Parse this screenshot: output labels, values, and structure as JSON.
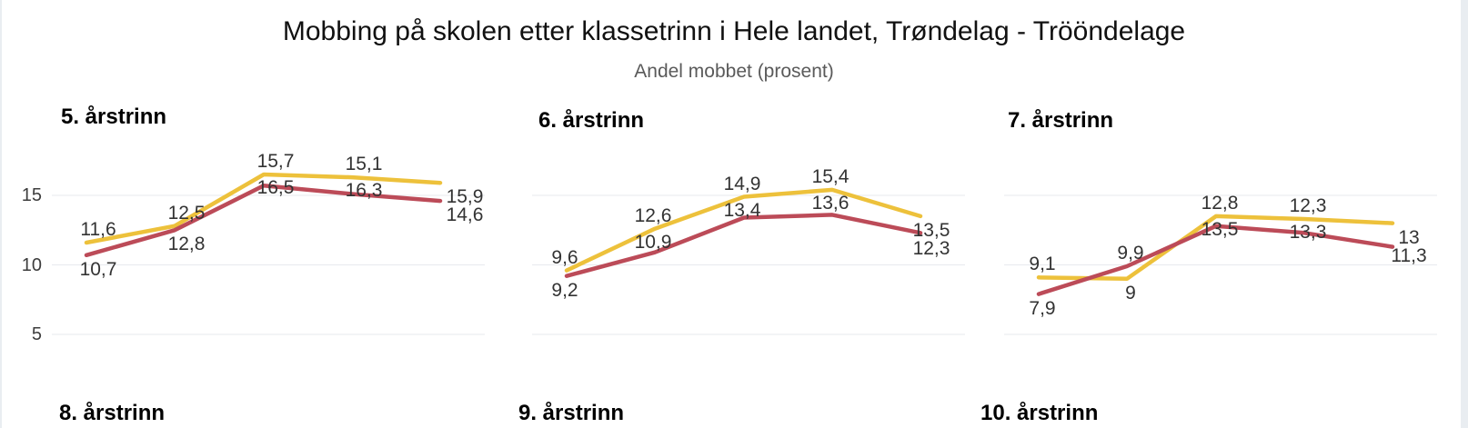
{
  "page": {
    "title": "Mobbing på skolen etter klassetrinn i Hele landet, Trøndelag - Trööndelage",
    "subtitle": "Andel mobbet (prosent)"
  },
  "colors": {
    "line_yellow": "#EDC13B",
    "line_red": "#BC4B58",
    "gridline": "#E7EAEE",
    "title_text": "#111111",
    "subtitle_text": "#5A5A5A",
    "panel_title_text": "#000000",
    "data_label_text": "#333333",
    "axis_tick_text": "#3D3D3D",
    "page_edge": "#E9EDF1"
  },
  "y_axis": {
    "ticks": [
      {
        "label": "15",
        "value": 15
      },
      {
        "label": "10",
        "value": 10
      },
      {
        "label": "5",
        "value": 5
      }
    ]
  },
  "chart_data": [
    {
      "type": "line",
      "title": "5. årstrinn",
      "x_count": 5,
      "grid": true,
      "gridline_values": [
        15,
        10,
        5
      ],
      "series": [
        {
          "name": "yellow",
          "color": "#EDC13B",
          "values": [
            11.6,
            12.8,
            16.5,
            16.3,
            15.9
          ]
        },
        {
          "name": "red",
          "color": "#BC4B58",
          "values": [
            10.7,
            12.5,
            15.7,
            15.1,
            14.6
          ]
        }
      ],
      "labels_upper": [
        "11,6",
        "12,5",
        "15,7",
        "15,1",
        "15,9"
      ],
      "labels_lower": [
        "10,7",
        "12,8",
        "16,5",
        "16,3",
        "14,6"
      ],
      "label_layout": [
        "below",
        "below",
        "tuck",
        "tuck",
        "stack"
      ]
    },
    {
      "type": "line",
      "title": "6. årstrinn",
      "x_count": 5,
      "grid": true,
      "gridline_values": [
        15,
        10,
        5
      ],
      "series": [
        {
          "name": "yellow",
          "color": "#EDC13B",
          "values": [
            9.6,
            12.6,
            14.9,
            15.4,
            13.5
          ]
        },
        {
          "name": "red",
          "color": "#BC4B58",
          "values": [
            9.2,
            10.9,
            13.4,
            13.6,
            12.3
          ]
        }
      ],
      "labels_upper": [
        "9,6",
        "12,6",
        "14,9",
        "15,4",
        "13,5"
      ],
      "labels_lower": [
        "9,2",
        "10,9",
        "13,4",
        "13,6",
        "12,3"
      ],
      "label_layout": [
        "below",
        "tuck",
        "tuck",
        "tuck",
        "stack"
      ]
    },
    {
      "type": "line",
      "title": "7. årstrinn",
      "x_count": 5,
      "grid": true,
      "gridline_values": [
        15,
        10,
        5
      ],
      "series": [
        {
          "name": "yellow",
          "color": "#EDC13B",
          "values": [
            9.1,
            9.0,
            13.5,
            13.3,
            13.0
          ]
        },
        {
          "name": "red",
          "color": "#BC4B58",
          "values": [
            7.9,
            9.9,
            12.8,
            12.3,
            11.3
          ]
        }
      ],
      "labels_upper": [
        "9,1",
        "9,9",
        "12,8",
        "12,3",
        "13"
      ],
      "labels_lower": [
        "7,9",
        "9",
        "13,5",
        "13,3",
        "11,3"
      ],
      "label_layout": [
        "below",
        "below",
        "tuck",
        "tuck",
        "stack"
      ]
    }
  ],
  "row2_titles": [
    "8. årstrinn",
    "9. årstrinn",
    "10. årstrinn"
  ]
}
